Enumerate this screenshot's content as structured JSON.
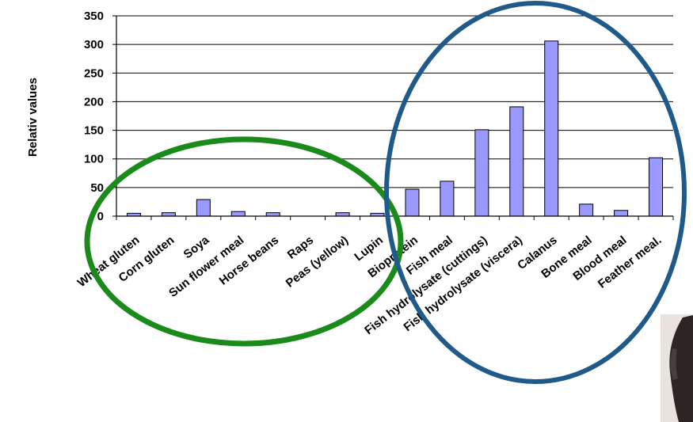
{
  "chart_data": {
    "type": "bar",
    "title": "",
    "xlabel": "",
    "ylabel": "Relativ values",
    "ylim": [
      0,
      350
    ],
    "yticks": [
      0,
      50,
      100,
      150,
      200,
      250,
      300,
      350
    ],
    "grid": true,
    "legend": "none",
    "categories": [
      "Wheat gluten",
      "Corn gluten",
      "Soya",
      "Sun flower meal",
      "Horse beans",
      "Raps",
      "Peas (yellow)",
      "Lupin",
      "Bioprotein",
      "Fish meal",
      "Fish hydrolysate (cuttings)",
      "Fish hydrolysate (viscera)",
      "Calanus",
      "Bone meal",
      "Blood meal",
      "Feather meal."
    ],
    "series": [
      {
        "values": [
          5,
          6,
          29,
          8,
          6,
          0,
          6,
          5,
          47,
          61,
          151,
          191,
          306,
          21,
          10,
          102
        ]
      }
    ],
    "colors": {
      "bar_fill": "#9999ff",
      "bar_stroke": "#000000",
      "grid": "#000000"
    },
    "annotations": [
      {
        "shape": "ellipse",
        "color": "#1a8a1a",
        "encloses": "Wheat gluten to Lupin"
      },
      {
        "shape": "ellipse",
        "color": "#1f5a8a",
        "encloses": "Bioprotein to Feather meal."
      }
    ]
  }
}
